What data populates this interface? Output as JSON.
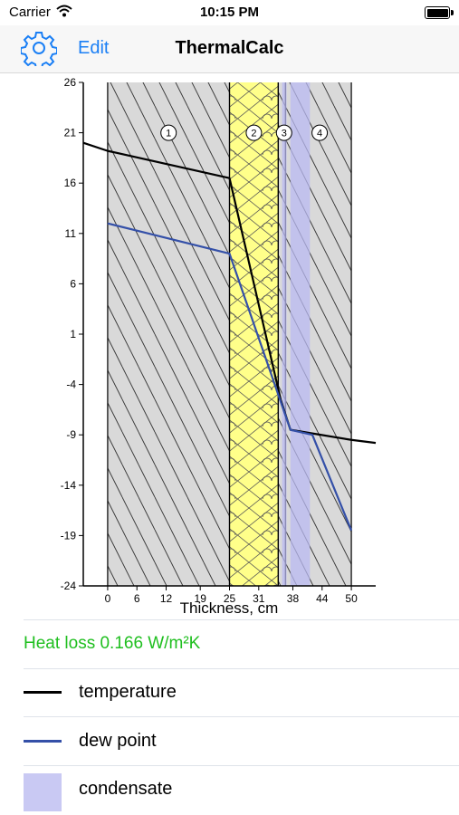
{
  "status_bar": {
    "carrier": "Carrier",
    "time": "10:15 PM"
  },
  "nav": {
    "title": "ThermalCalc",
    "edit_label": "Edit",
    "settings_icon": "gear-icon"
  },
  "chart_data": {
    "type": "line",
    "xlabel": "Thickness, cm",
    "ylabel": "",
    "xlim": [
      -5,
      55
    ],
    "ylim": [
      -24,
      26
    ],
    "y_ticks": [
      26,
      21,
      16,
      11,
      6,
      1,
      -4,
      -9,
      -14,
      -19,
      -24
    ],
    "x_ticks": [
      0,
      6,
      12,
      19,
      25,
      31,
      38,
      44,
      50
    ],
    "layers": [
      {
        "label": "1",
        "x0": 0,
        "x1": 25,
        "material": "hatched"
      },
      {
        "label": "2",
        "x0": 25,
        "x1": 35,
        "material": "insulation"
      },
      {
        "label": "3",
        "x0": 35,
        "x1": 36.5,
        "material": "hatched"
      },
      {
        "label": "4",
        "x0": 36.5,
        "x1": 50,
        "material": "hatched"
      }
    ],
    "condensate_zones": [
      {
        "x0": 35.8,
        "x1": 36.7
      },
      {
        "x0": 37.5,
        "x1": 41.5
      }
    ],
    "series": [
      {
        "name": "temperature",
        "color": "#000000",
        "x": [
          -6,
          0,
          25,
          35.5,
          37.5,
          50,
          56
        ],
        "y": [
          20,
          19.2,
          16.5,
          -5.5,
          -8.5,
          -9.5,
          -9.8
        ]
      },
      {
        "name": "dew point",
        "color": "#3450a8",
        "x": [
          0,
          25,
          35,
          37.5,
          42,
          50
        ],
        "y": [
          12,
          9,
          -5,
          -8.5,
          -9,
          -18.5
        ]
      }
    ]
  },
  "heat_loss": "Heat loss 0.166 W/m²K",
  "legend": [
    {
      "label": "temperature",
      "color": "#000000",
      "kind": "line"
    },
    {
      "label": "dew point",
      "color": "#3450a8",
      "kind": "line"
    },
    {
      "label": "condensate",
      "color": "#c9c9f3",
      "kind": "swatch"
    }
  ]
}
